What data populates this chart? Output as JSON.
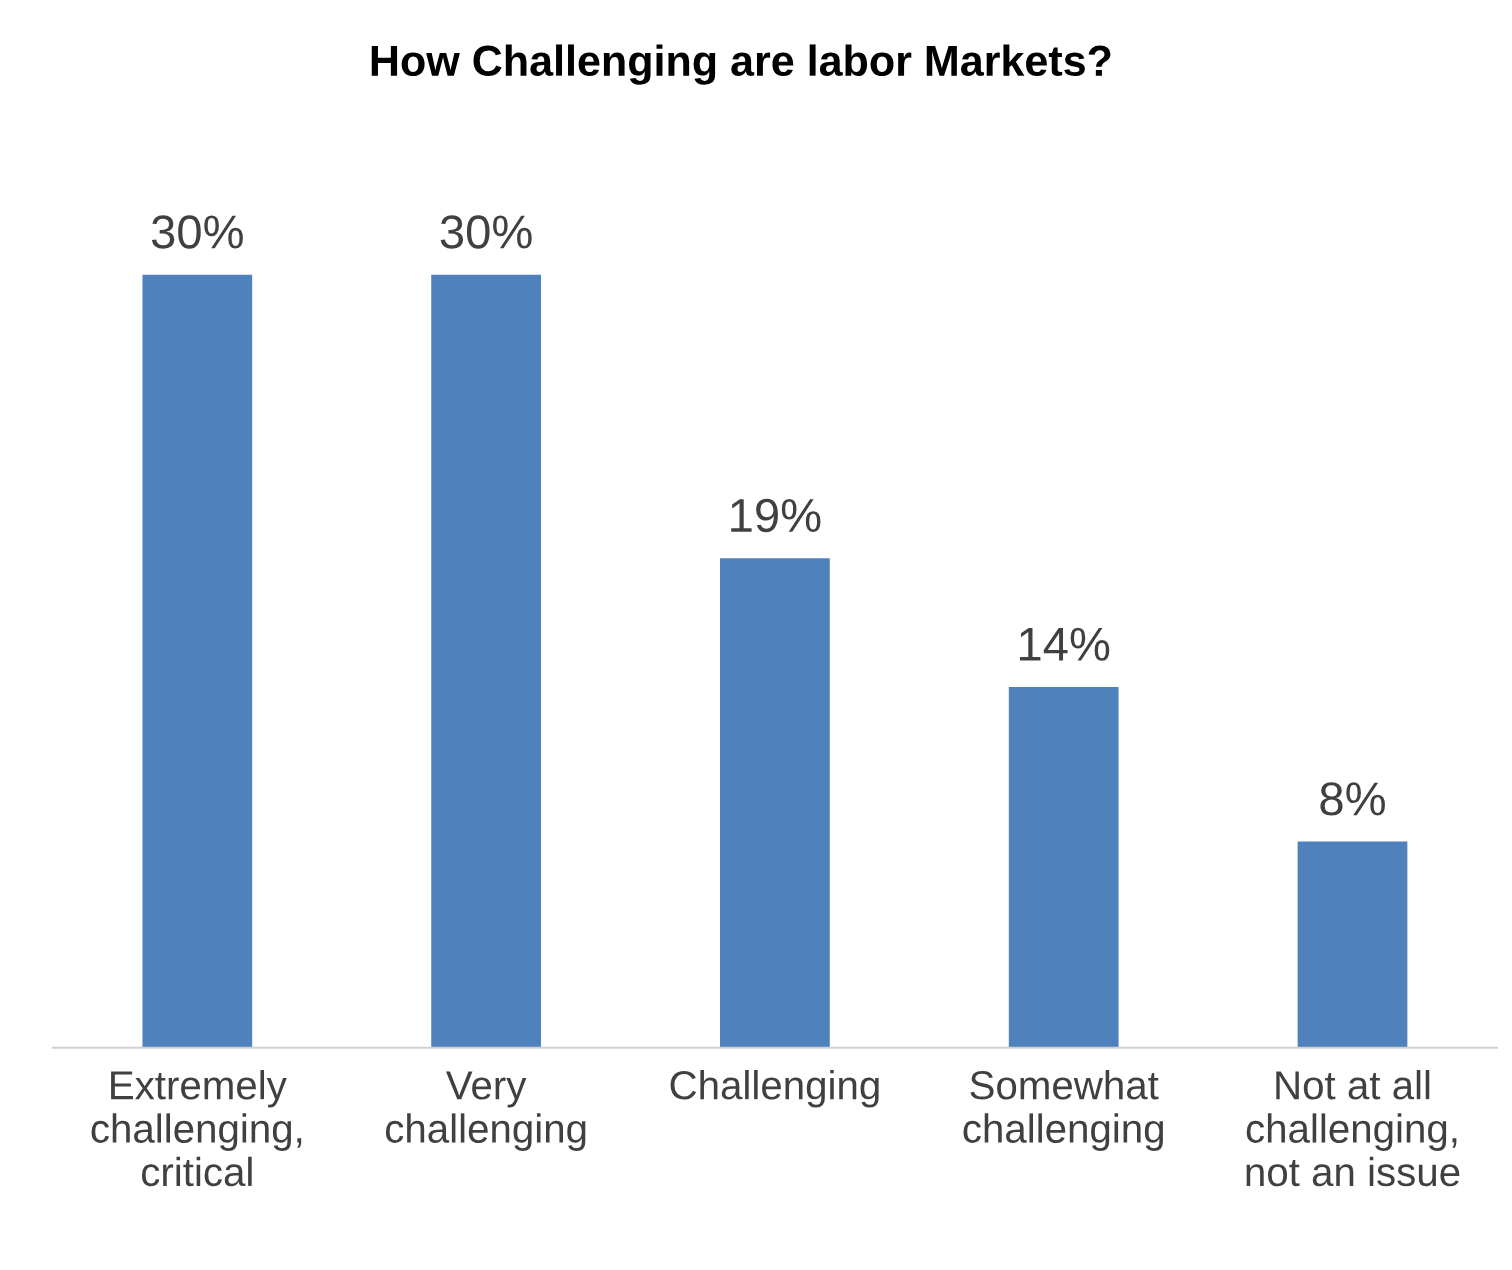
{
  "chart_data": {
    "type": "bar",
    "title": "How Challenging are labor Markets?",
    "categories": [
      "Extremely\nchallenging,\ncritical",
      "Very\nchallenging",
      "Challenging",
      "Somewhat\nchallenging",
      "Not at all\nchallenging,\nnot an issue"
    ],
    "values": [
      30,
      30,
      19,
      14,
      8
    ],
    "value_labels": [
      "30%",
      "30%",
      "19%",
      "14%",
      "8%"
    ],
    "color": "#4f81bd",
    "grid": false,
    "legend": false
  }
}
